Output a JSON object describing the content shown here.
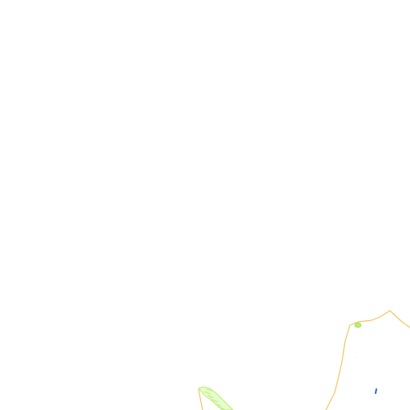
{
  "map": {
    "background": "#ffffff",
    "colors": {
      "boundary": "#f2c55c",
      "vegetation": "#b7f06a",
      "water": "#2b6cc4"
    },
    "layers": [
      "administrative-boundary",
      "vegetation-patch",
      "water-feature"
    ]
  }
}
